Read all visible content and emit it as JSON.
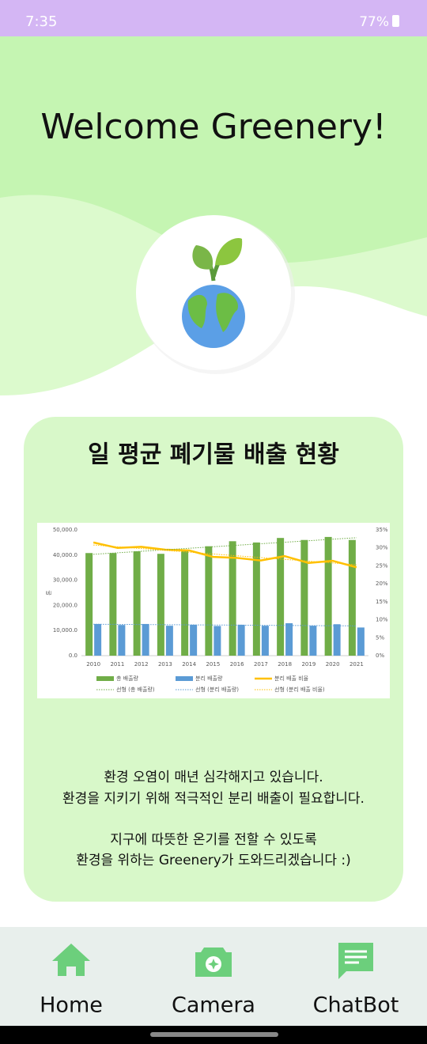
{
  "status_bar": {
    "time": "7:35",
    "battery": "77%"
  },
  "header": {
    "title": "Welcome Greenery!"
  },
  "card": {
    "title": "일 평균 폐기물 배출 현황",
    "lines": [
      "환경 오염이 매년 심각해지고 있습니다.",
      "환경을 지키기 위해 적극적인 분리 배출이 필요합니다.",
      "지구에 따뜻한 온기를 전할 수 있도록",
      "환경을 위하는 Greenery가 도와드리겠습니다 :)"
    ]
  },
  "chart_data": {
    "type": "bar-line",
    "categories": [
      "2010",
      "2011",
      "2012",
      "2013",
      "2014",
      "2015",
      "2016",
      "2017",
      "2018",
      "2019",
      "2020",
      "2021"
    ],
    "y_label": "톤",
    "series": [
      {
        "name": "총 배출량",
        "color": "#70ad47",
        "kind": "bar",
        "values": [
          40800,
          40800,
          41500,
          40500,
          42000,
          43500,
          45500,
          45000,
          46800,
          46000,
          47200,
          46000
        ]
      },
      {
        "name": "분리 배출량",
        "color": "#5b9bd5",
        "kind": "bar",
        "values": [
          12600,
          12200,
          12600,
          11900,
          12300,
          11800,
          12300,
          11900,
          12900,
          11900,
          12500,
          11200
        ]
      },
      {
        "name": "분리 배출 비율",
        "color": "#ffc000",
        "kind": "line",
        "axis": "y2",
        "values": [
          31.5,
          30.0,
          30.3,
          29.5,
          29.3,
          27.5,
          27.2,
          26.5,
          27.7,
          25.8,
          26.4,
          24.6
        ]
      },
      {
        "name": "선형 (총 배출량)",
        "color": "#70ad47",
        "kind": "trend",
        "values": [
          40300,
          40900,
          41500,
          42100,
          42700,
          43300,
          43900,
          44500,
          45100,
          45700,
          46300,
          46900
        ]
      },
      {
        "name": "선형 (분리 배출량)",
        "color": "#5b9bd5",
        "kind": "trend",
        "values": [
          12500,
          12440,
          12380,
          12320,
          12260,
          12200,
          12140,
          12080,
          12020,
          11960,
          11900,
          11840
        ]
      },
      {
        "name": "선형 (분리 배출 비율)",
        "color": "#ffc000",
        "kind": "trend",
        "axis": "y2",
        "values": [
          30.8,
          30.3,
          29.8,
          29.3,
          28.8,
          28.3,
          27.8,
          27.3,
          26.8,
          26.3,
          25.8,
          25.3
        ]
      }
    ],
    "ylim": [
      0,
      50000
    ],
    "yticks": [
      {
        "value": 0,
        "label": "0.0"
      },
      {
        "value": 10000,
        "label": "10,000.0"
      },
      {
        "value": 20000,
        "label": "20,000.0"
      },
      {
        "value": 30000,
        "label": "30,000.0"
      },
      {
        "value": 40000,
        "label": "40,000.0"
      },
      {
        "value": 50000,
        "label": "50,000.0"
      }
    ],
    "y2lim": [
      0,
      35
    ],
    "y2ticks": [
      {
        "value": 0,
        "label": "0%"
      },
      {
        "value": 5,
        "label": "5%"
      },
      {
        "value": 10,
        "label": "10%"
      },
      {
        "value": 15,
        "label": "15%"
      },
      {
        "value": 20,
        "label": "20%"
      },
      {
        "value": 25,
        "label": "25%"
      },
      {
        "value": 30,
        "label": "30%"
      },
      {
        "value": 35,
        "label": "35%"
      }
    ],
    "grid": false,
    "legend": "bottom"
  },
  "nav": {
    "items": [
      "Home",
      "Camera",
      "ChatBot"
    ]
  }
}
